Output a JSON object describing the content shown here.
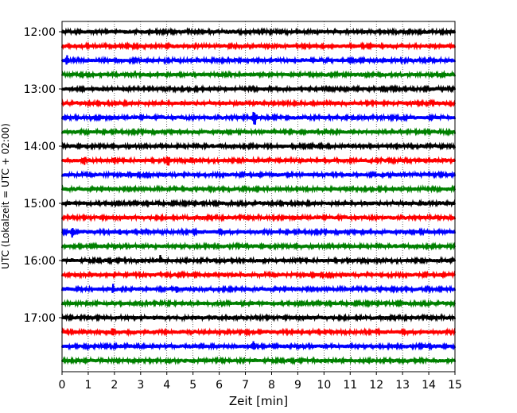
{
  "chart_data": {
    "type": "line",
    "title": "",
    "xlabel": "Zeit  [min]",
    "ylabel": "UTC (Lokalzeit = UTC + 02:00)",
    "xlim": [
      0,
      15
    ],
    "xticks": [
      0,
      1,
      2,
      3,
      4,
      5,
      6,
      7,
      8,
      9,
      10,
      11,
      12,
      13,
      14,
      15
    ],
    "xtick_labels": [
      "0",
      "1",
      "2",
      "3",
      "4",
      "5",
      "6",
      "7",
      "8",
      "9",
      "10",
      "11",
      "12",
      "13",
      "14",
      "15"
    ],
    "ytick_labels": [
      "12:00",
      "13:00",
      "14:00",
      "15:00",
      "16:00",
      "17:00"
    ],
    "grid": "vertical dotted",
    "row_minutes": 15,
    "trace_colors": [
      "#000000",
      "#ff0000",
      "#0000ff",
      "#008000"
    ],
    "traces": [
      {
        "start": "12:00",
        "events": []
      },
      {
        "start": "12:15",
        "events": []
      },
      {
        "start": "12:30",
        "events": [
          {
            "minute": 0.2,
            "amplitude": "medium"
          }
        ]
      },
      {
        "start": "12:45",
        "events": []
      },
      {
        "start": "13:00",
        "events": []
      },
      {
        "start": "13:15",
        "events": []
      },
      {
        "start": "13:30",
        "events": [
          {
            "minute": 7.35,
            "amplitude": "large"
          }
        ]
      },
      {
        "start": "13:45",
        "events": []
      },
      {
        "start": "14:00",
        "events": []
      },
      {
        "start": "14:15",
        "events": [
          {
            "minute": 0.85,
            "amplitude": "small"
          },
          {
            "minute": 2.0,
            "amplitude": "small"
          },
          {
            "minute": 4.05,
            "amplitude": "medium"
          },
          {
            "minute": 4.95,
            "amplitude": "small"
          }
        ]
      },
      {
        "start": "14:30",
        "events": []
      },
      {
        "start": "14:45",
        "events": []
      },
      {
        "start": "15:00",
        "events": []
      },
      {
        "start": "15:15",
        "events": []
      },
      {
        "start": "15:30",
        "events": [
          {
            "minute": 0.4,
            "amplitude": "medium"
          },
          {
            "minute": 2.2,
            "amplitude": "small"
          }
        ]
      },
      {
        "start": "15:45",
        "events": []
      },
      {
        "start": "16:00",
        "events": [
          {
            "minute": 3.75,
            "amplitude": "small"
          }
        ]
      },
      {
        "start": "16:15",
        "events": []
      },
      {
        "start": "16:30",
        "events": [
          {
            "minute": 1.95,
            "amplitude": "small"
          },
          {
            "minute": 4.4,
            "amplitude": "small"
          }
        ]
      },
      {
        "start": "16:45",
        "events": []
      },
      {
        "start": "17:00",
        "events": []
      },
      {
        "start": "17:15",
        "events": [
          {
            "minute": 1.95,
            "amplitude": "medium"
          }
        ]
      },
      {
        "start": "17:30",
        "events": [
          {
            "minute": 7.3,
            "amplitude": "medium"
          }
        ]
      },
      {
        "start": "17:45",
        "events": []
      }
    ]
  }
}
